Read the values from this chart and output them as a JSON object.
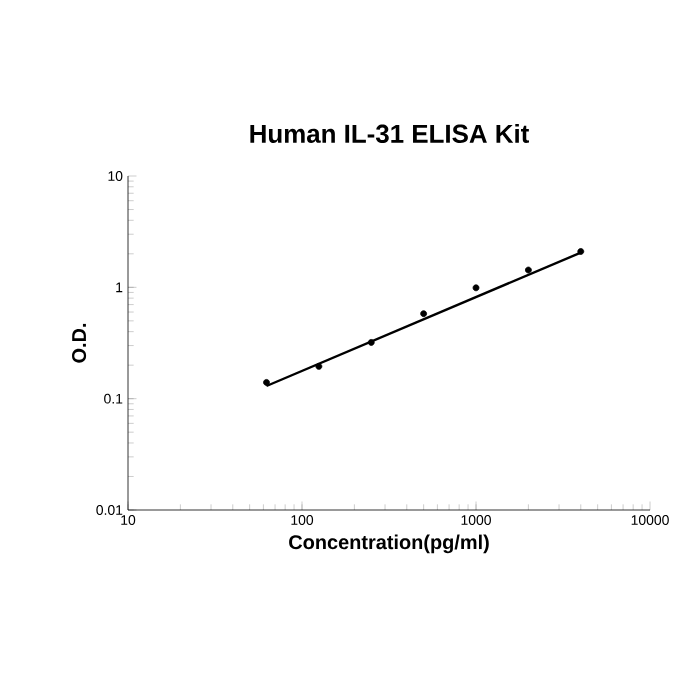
{
  "chart_data": {
    "type": "scatter",
    "title": "Human IL-31 ELISA Kit",
    "xlabel": "Concentration(pg/ml)",
    "ylabel": "O.D.",
    "log": "xy",
    "xlim": [
      10,
      10000
    ],
    "ylim": [
      0.01,
      10
    ],
    "xticks": [
      10,
      100,
      1000,
      10000
    ],
    "yticks": [
      0.01,
      0.1,
      1,
      10
    ],
    "grid": false,
    "series": [
      {
        "color": "#000000",
        "marker": "circle",
        "x": [
          62.5,
          125,
          250,
          500,
          1000,
          2000,
          4000
        ],
        "values": [
          0.14,
          0.195,
          0.32,
          0.58,
          0.99,
          1.43,
          2.1
        ]
      },
      {
        "type": "line",
        "color": "#000000",
        "marker": "none",
        "x": [
          62.5,
          4000
        ],
        "values": [
          0.13,
          2.05
        ]
      }
    ]
  }
}
